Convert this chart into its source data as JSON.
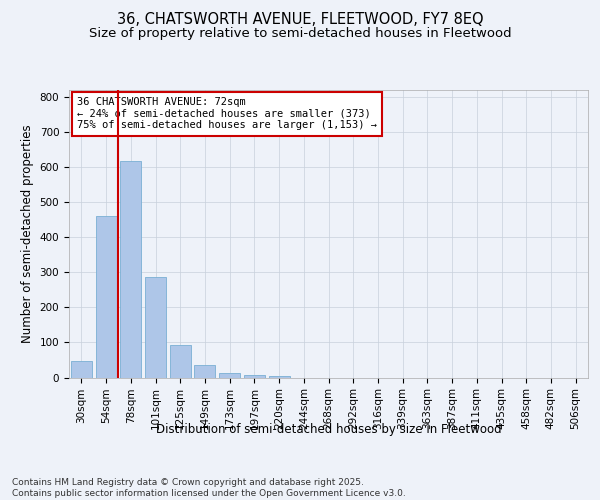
{
  "title1": "36, CHATSWORTH AVENUE, FLEETWOOD, FY7 8EQ",
  "title2": "Size of property relative to semi-detached houses in Fleetwood",
  "xlabel": "Distribution of semi-detached houses by size in Fleetwood",
  "ylabel": "Number of semi-detached properties",
  "categories": [
    "30sqm",
    "54sqm",
    "78sqm",
    "101sqm",
    "125sqm",
    "149sqm",
    "173sqm",
    "197sqm",
    "220sqm",
    "244sqm",
    "268sqm",
    "292sqm",
    "316sqm",
    "339sqm",
    "363sqm",
    "387sqm",
    "411sqm",
    "435sqm",
    "458sqm",
    "482sqm",
    "506sqm"
  ],
  "values": [
    47,
    462,
    617,
    288,
    93,
    37,
    14,
    7,
    5,
    0,
    0,
    0,
    0,
    0,
    0,
    0,
    0,
    0,
    0,
    0,
    0
  ],
  "bar_color": "#aec6e8",
  "bar_edge_color": "#7aafd4",
  "vline_color": "#cc0000",
  "vline_pos": 1.5,
  "annotation_text": "36 CHATSWORTH AVENUE: 72sqm\n← 24% of semi-detached houses are smaller (373)\n75% of semi-detached houses are larger (1,153) →",
  "annotation_box_facecolor": "#ffffff",
  "annotation_box_edgecolor": "#cc0000",
  "ylim": [
    0,
    820
  ],
  "yticks": [
    0,
    100,
    200,
    300,
    400,
    500,
    600,
    700,
    800
  ],
  "background_color": "#eef2f9",
  "plot_background": "#eef2f9",
  "footer": "Contains HM Land Registry data © Crown copyright and database right 2025.\nContains public sector information licensed under the Open Government Licence v3.0.",
  "title_fontsize": 10.5,
  "subtitle_fontsize": 9.5,
  "axis_label_fontsize": 8.5,
  "tick_fontsize": 7.5,
  "annotation_fontsize": 7.5,
  "footer_fontsize": 6.5
}
